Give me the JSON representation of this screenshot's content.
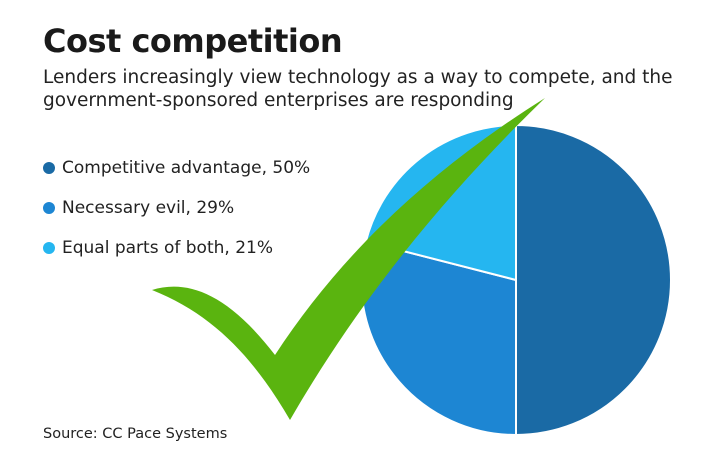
{
  "title": "Cost competition",
  "subtitle": "Lenders increasingly view technology as a way to compete, and the government-sponsored enterprises are responding",
  "source": "Source: CC Pace Systems",
  "colors": {
    "competitive_advantage": "#1a6aa5",
    "necessary_evil": "#1d86d3",
    "equal_parts": "#25b6f0",
    "checkmark": "#5ab40f"
  },
  "overlay_icon": "checkmark-icon",
  "legend": [
    {
      "label": "Competitive advantage, 50%",
      "color": "#1a6aa5"
    },
    {
      "label": "Necessary evil, 29%",
      "color": "#1d86d3"
    },
    {
      "label": "Equal parts of both, 21%",
      "color": "#25b6f0"
    }
  ],
  "chart_data": {
    "type": "pie",
    "title": "Cost competition",
    "slices": [
      {
        "label": "Competitive advantage",
        "value": 50,
        "color": "#1a6aa5"
      },
      {
        "label": "Necessary evil",
        "value": 29,
        "color": "#1d86d3"
      },
      {
        "label": "Equal parts of both",
        "value": 21,
        "color": "#25b6f0"
      }
    ],
    "unit": "%",
    "legend_position": "left"
  }
}
